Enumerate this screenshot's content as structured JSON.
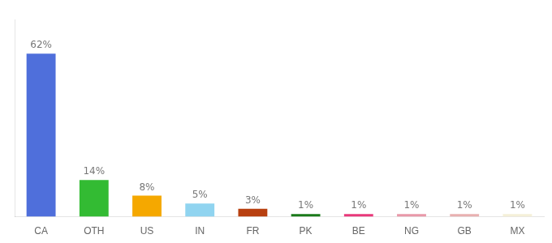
{
  "chart_data": {
    "type": "bar",
    "categories": [
      "CA",
      "OTH",
      "US",
      "IN",
      "FR",
      "PK",
      "BE",
      "NG",
      "GB",
      "MX"
    ],
    "values": [
      62,
      14,
      8,
      5,
      3,
      1,
      1,
      1,
      1,
      1
    ],
    "value_labels": [
      "62%",
      "14%",
      "8%",
      "5%",
      "3%",
      "1%",
      "1%",
      "1%",
      "1%",
      "1%"
    ],
    "colors": [
      "#4f6fdb",
      "#33bb33",
      "#f5a800",
      "#90d4f0",
      "#b84010",
      "#1a7a1a",
      "#e8387a",
      "#e898a8",
      "#e8b0b0",
      "#f5f0d8"
    ],
    "ylim": [
      0,
      75
    ],
    "grid": false,
    "tick_labels": "x",
    "data_labels": true
  }
}
